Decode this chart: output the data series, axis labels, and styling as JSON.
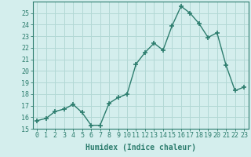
{
  "xlabel": "Humidex (Indice chaleur)",
  "ylabel": "",
  "x_values": [
    0,
    1,
    2,
    3,
    4,
    5,
    6,
    7,
    8,
    9,
    10,
    11,
    12,
    13,
    14,
    15,
    16,
    17,
    18,
    19,
    20,
    21,
    22,
    23
  ],
  "y_values": [
    15.7,
    15.9,
    16.5,
    16.7,
    17.1,
    16.4,
    15.3,
    15.3,
    17.2,
    17.7,
    18.0,
    20.6,
    21.6,
    22.4,
    21.8,
    23.9,
    25.6,
    25.0,
    24.1,
    22.9,
    23.3,
    20.5,
    18.3,
    18.6
  ],
  "line_color": "#2d7d6e",
  "marker": "+",
  "marker_size": 4,
  "background_color": "#d4eeed",
  "grid_color": "#b2d8d5",
  "ylim": [
    15,
    26
  ],
  "yticks": [
    15,
    16,
    17,
    18,
    19,
    20,
    21,
    22,
    23,
    24,
    25
  ],
  "xlim": [
    -0.5,
    23.5
  ],
  "xticks": [
    0,
    1,
    2,
    3,
    4,
    5,
    6,
    7,
    8,
    9,
    10,
    11,
    12,
    13,
    14,
    15,
    16,
    17,
    18,
    19,
    20,
    21,
    22,
    23
  ],
  "xlabel_fontsize": 7,
  "tick_fontsize": 6,
  "line_width": 1.0
}
